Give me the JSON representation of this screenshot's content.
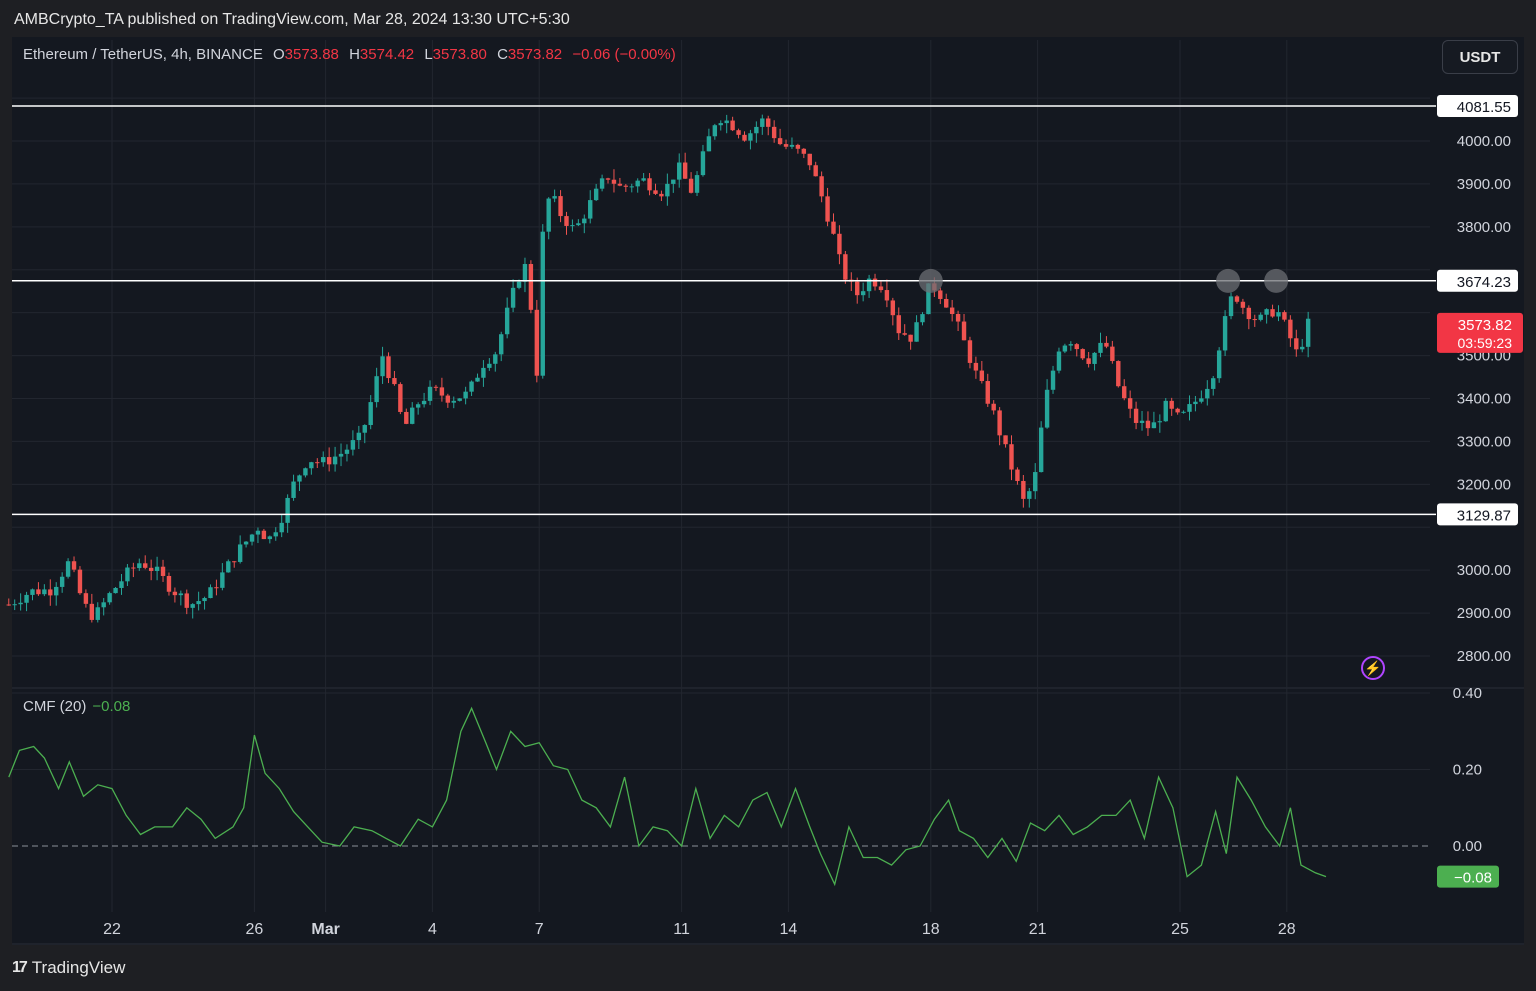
{
  "header": {
    "published": "AMBCrypto_TA published on TradingView.com, Mar 28, 2024 13:30 UTC+5:30"
  },
  "legend": {
    "symbol": "Ethereum / TetherUS, 4h, BINANCE",
    "o_label": "O",
    "o_value": "3573.88",
    "h_label": "H",
    "h_value": "3574.42",
    "l_label": "L",
    "l_value": "3573.80",
    "c_label": "C",
    "c_value": "3573.82",
    "change": "−0.06 (−0.00%)"
  },
  "currency_button": "USDT",
  "price_axis": {
    "ticks": [
      {
        "v": 4000,
        "label": "4000.00"
      },
      {
        "v": 3900,
        "label": "3900.00"
      },
      {
        "v": 3800,
        "label": "3800.00"
      },
      {
        "v": 3500,
        "label": "3500.00"
      },
      {
        "v": 3400,
        "label": "3400.00"
      },
      {
        "v": 3300,
        "label": "3300.00"
      },
      {
        "v": 3200,
        "label": "3200.00"
      },
      {
        "v": 3000,
        "label": "3000.00"
      },
      {
        "v": 2900,
        "label": "2900.00"
      },
      {
        "v": 2800,
        "label": "2800.00"
      }
    ],
    "levels": [
      {
        "v": 4081.55,
        "label": "4081.55"
      },
      {
        "v": 3674.23,
        "label": "3674.23"
      },
      {
        "v": 3129.87,
        "label": "3129.87"
      }
    ],
    "current": {
      "v": 3573.82,
      "label": "3573.82",
      "countdown": "03:59:23"
    }
  },
  "x_axis": {
    "labels": [
      {
        "label": "22",
        "d": -6
      },
      {
        "label": "26",
        "d": -2
      },
      {
        "label": "Mar",
        "d": 0,
        "bold": true
      },
      {
        "label": "4",
        "d": 3
      },
      {
        "label": "7",
        "d": 6
      },
      {
        "label": "11",
        "d": 10
      },
      {
        "label": "14",
        "d": 13
      },
      {
        "label": "18",
        "d": 17
      },
      {
        "label": "21",
        "d": 20
      },
      {
        "label": "25",
        "d": 24
      },
      {
        "label": "28",
        "d": 27
      }
    ]
  },
  "cmf": {
    "label": "CMF (20)",
    "value": "−0.08",
    "ticks": [
      {
        "v": 0.4,
        "label": "0.40"
      },
      {
        "v": 0.2,
        "label": "0.20"
      },
      {
        "v": 0.0,
        "label": "0.00"
      }
    ],
    "current": {
      "v": -0.08,
      "label": "−0.08"
    }
  },
  "footer": {
    "brand": "TradingView",
    "logo": "17"
  },
  "colors": {
    "up": "#26a69a",
    "down": "#ef5350",
    "cmf_line": "#4caf50",
    "bg": "#141820"
  },
  "chart_data": [
    {
      "type": "candlestick",
      "title": "Ethereum / TetherUS, 4h, BINANCE",
      "x_unit": "days since Mar 1, 2024",
      "ylim": [
        2740,
        4140
      ],
      "horizontal_levels": [
        4081.55,
        3674.23,
        3129.87
      ],
      "highlighted_points": [
        {
          "d": 17.0,
          "v": 3674
        },
        {
          "d": 25.35,
          "v": 3674
        },
        {
          "d": 26.7,
          "v": 3674
        }
      ],
      "price_path": [
        [
          -8.9,
          2920
        ],
        [
          -8.3,
          2950
        ],
        [
          -7.7,
          2955
        ],
        [
          -7.2,
          3020
        ],
        [
          -6.8,
          2920
        ],
        [
          -6.5,
          2890
        ],
        [
          -6.0,
          2950
        ],
        [
          -5.6,
          2990
        ],
        [
          -5.2,
          3020
        ],
        [
          -4.8,
          3000
        ],
        [
          -4.3,
          2955
        ],
        [
          -3.8,
          2920
        ],
        [
          -3.3,
          2940
        ],
        [
          -2.9,
          2990
        ],
        [
          -2.5,
          3040
        ],
        [
          -2.2,
          3070
        ],
        [
          -1.9,
          3100
        ],
        [
          -1.6,
          3070
        ],
        [
          -1.2,
          3130
        ],
        [
          -0.9,
          3200
        ],
        [
          -0.5,
          3260
        ],
        [
          -0.1,
          3250
        ],
        [
          0.4,
          3270
        ],
        [
          1.0,
          3310
        ],
        [
          1.3,
          3400
        ],
        [
          1.6,
          3500
        ],
        [
          1.9,
          3430
        ],
        [
          2.2,
          3330
        ],
        [
          2.6,
          3390
        ],
        [
          3.0,
          3420
        ],
        [
          3.5,
          3400
        ],
        [
          4.0,
          3410
        ],
        [
          4.4,
          3480
        ],
        [
          4.8,
          3510
        ],
        [
          5.1,
          3600
        ],
        [
          5.4,
          3680
        ],
        [
          5.7,
          3720
        ],
        [
          5.9,
          3400
        ],
        [
          6.1,
          3780
        ],
        [
          6.3,
          3880
        ],
        [
          6.6,
          3830
        ],
        [
          7.0,
          3790
        ],
        [
          7.4,
          3850
        ],
        [
          7.9,
          3920
        ],
        [
          8.3,
          3890
        ],
        [
          8.9,
          3910
        ],
        [
          9.5,
          3880
        ],
        [
          9.9,
          3940
        ],
        [
          10.3,
          3880
        ],
        [
          10.7,
          3990
        ],
        [
          11.0,
          4060
        ],
        [
          11.4,
          4040
        ],
        [
          11.8,
          4010
        ],
        [
          12.3,
          4050
        ],
        [
          12.8,
          3990
        ],
        [
          13.2,
          3980
        ],
        [
          13.6,
          3950
        ],
        [
          13.9,
          3880
        ],
        [
          14.2,
          3800
        ],
        [
          14.5,
          3700
        ],
        [
          14.9,
          3640
        ],
        [
          15.3,
          3680
        ],
        [
          15.7,
          3660
        ],
        [
          16.1,
          3560
        ],
        [
          16.5,
          3540
        ],
        [
          16.8,
          3620
        ],
        [
          17.0,
          3670
        ],
        [
          17.4,
          3630
        ],
        [
          17.8,
          3560
        ],
        [
          18.3,
          3450
        ],
        [
          18.7,
          3380
        ],
        [
          19.1,
          3280
        ],
        [
          19.6,
          3160
        ],
        [
          19.9,
          3200
        ],
        [
          20.2,
          3390
        ],
        [
          20.6,
          3520
        ],
        [
          20.9,
          3540
        ],
        [
          21.4,
          3490
        ],
        [
          21.9,
          3530
        ],
        [
          22.3,
          3420
        ],
        [
          22.7,
          3350
        ],
        [
          23.2,
          3330
        ],
        [
          23.6,
          3380
        ],
        [
          24.0,
          3350
        ],
        [
          24.5,
          3400
        ],
        [
          24.9,
          3450
        ],
        [
          25.2,
          3560
        ],
        [
          25.5,
          3650
        ],
        [
          25.8,
          3610
        ],
        [
          26.2,
          3580
        ],
        [
          26.7,
          3610
        ],
        [
          27.0,
          3560
        ],
        [
          27.3,
          3500
        ],
        [
          27.6,
          3573
        ]
      ]
    },
    {
      "type": "line",
      "title": "CMF (20)",
      "x_unit": "days since Mar 1, 2024",
      "ylim": [
        -0.12,
        0.4
      ],
      "points": [
        [
          -8.9,
          0.18
        ],
        [
          -8.6,
          0.25
        ],
        [
          -8.2,
          0.26
        ],
        [
          -7.9,
          0.23
        ],
        [
          -7.5,
          0.15
        ],
        [
          -7.2,
          0.22
        ],
        [
          -6.8,
          0.13
        ],
        [
          -6.4,
          0.16
        ],
        [
          -6.0,
          0.15
        ],
        [
          -5.6,
          0.08
        ],
        [
          -5.2,
          0.03
        ],
        [
          -4.8,
          0.05
        ],
        [
          -4.3,
          0.05
        ],
        [
          -3.9,
          0.1
        ],
        [
          -3.5,
          0.07
        ],
        [
          -3.1,
          0.02
        ],
        [
          -2.6,
          0.05
        ],
        [
          -2.3,
          0.1
        ],
        [
          -2.0,
          0.29
        ],
        [
          -1.7,
          0.19
        ],
        [
          -1.3,
          0.15
        ],
        [
          -0.9,
          0.09
        ],
        [
          -0.5,
          0.05
        ],
        [
          -0.1,
          0.01
        ],
        [
          0.4,
          0.0
        ],
        [
          0.8,
          0.05
        ],
        [
          1.3,
          0.04
        ],
        [
          1.7,
          0.02
        ],
        [
          2.1,
          0.0
        ],
        [
          2.6,
          0.07
        ],
        [
          3.0,
          0.05
        ],
        [
          3.4,
          0.12
        ],
        [
          3.8,
          0.3
        ],
        [
          4.1,
          0.36
        ],
        [
          4.5,
          0.27
        ],
        [
          4.8,
          0.2
        ],
        [
          5.2,
          0.3
        ],
        [
          5.6,
          0.26
        ],
        [
          6.0,
          0.27
        ],
        [
          6.4,
          0.21
        ],
        [
          6.8,
          0.2
        ],
        [
          7.2,
          0.12
        ],
        [
          7.6,
          0.1
        ],
        [
          8.0,
          0.05
        ],
        [
          8.4,
          0.18
        ],
        [
          8.8,
          0.0
        ],
        [
          9.2,
          0.05
        ],
        [
          9.6,
          0.04
        ],
        [
          10.0,
          0.0
        ],
        [
          10.4,
          0.15
        ],
        [
          10.8,
          0.02
        ],
        [
          11.2,
          0.08
        ],
        [
          11.6,
          0.05
        ],
        [
          12.0,
          0.12
        ],
        [
          12.4,
          0.14
        ],
        [
          12.8,
          0.05
        ],
        [
          13.2,
          0.15
        ],
        [
          13.6,
          0.05
        ],
        [
          13.9,
          -0.02
        ],
        [
          14.3,
          -0.1
        ],
        [
          14.7,
          0.05
        ],
        [
          15.1,
          -0.03
        ],
        [
          15.5,
          -0.03
        ],
        [
          15.9,
          -0.05
        ],
        [
          16.3,
          -0.01
        ],
        [
          16.7,
          0.0
        ],
        [
          17.1,
          0.07
        ],
        [
          17.5,
          0.12
        ],
        [
          17.8,
          0.04
        ],
        [
          18.2,
          0.02
        ],
        [
          18.6,
          -0.03
        ],
        [
          19.0,
          0.02
        ],
        [
          19.4,
          -0.04
        ],
        [
          19.8,
          0.06
        ],
        [
          20.2,
          0.04
        ],
        [
          20.6,
          0.08
        ],
        [
          21.0,
          0.03
        ],
        [
          21.4,
          0.05
        ],
        [
          21.8,
          0.08
        ],
        [
          22.2,
          0.08
        ],
        [
          22.6,
          0.12
        ],
        [
          23.0,
          0.02
        ],
        [
          23.4,
          0.18
        ],
        [
          23.8,
          0.1
        ],
        [
          24.2,
          -0.08
        ],
        [
          24.6,
          -0.05
        ],
        [
          25.0,
          0.09
        ],
        [
          25.3,
          -0.02
        ],
        [
          25.6,
          0.18
        ],
        [
          26.0,
          0.12
        ],
        [
          26.4,
          0.05
        ],
        [
          26.8,
          0.0
        ],
        [
          27.1,
          0.1
        ],
        [
          27.4,
          -0.05
        ],
        [
          27.8,
          -0.07
        ],
        [
          28.1,
          -0.08
        ]
      ]
    }
  ]
}
